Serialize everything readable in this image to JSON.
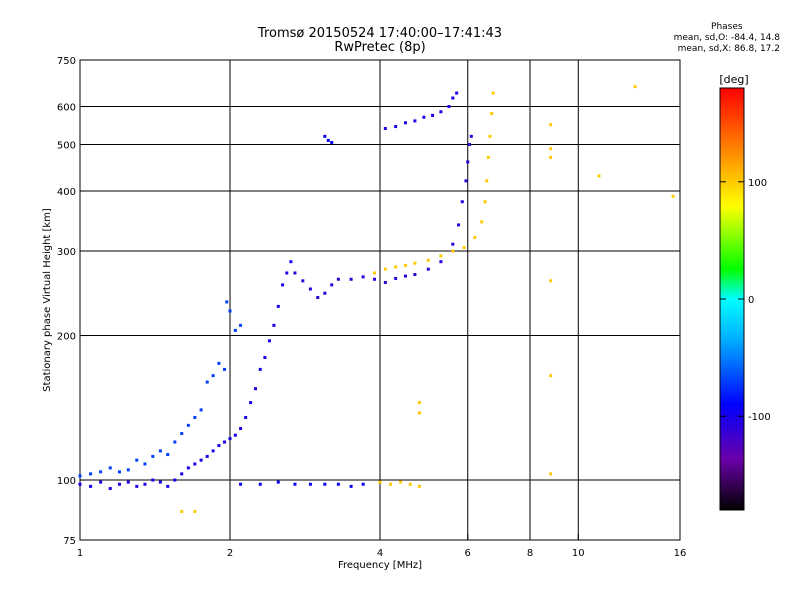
{
  "header": {
    "title": "Tromsø 20150524 17:40:00–17:41:43",
    "subtitle": "RwPretec (8p)"
  },
  "phases": {
    "label": "Phases",
    "line_o": "mean, sd,O: -84.4, 14.8",
    "line_x": "mean, sd,X:  86.8, 17.2"
  },
  "colorbar": {
    "unit": "[deg]",
    "ticks": [
      {
        "value": 100,
        "label": "100"
      },
      {
        "value": 0,
        "label": "0"
      },
      {
        "value": -100,
        "label": "-100"
      }
    ],
    "range": [
      -180,
      180
    ]
  },
  "chart_data": {
    "type": "scatter",
    "title": "Tromsø 20150524 17:40:00–17:41:43",
    "subtitle": "RwPretec (8p)",
    "xlabel": "Frequency [MHz]",
    "ylabel": "Stationary phase Virtual Height [km]",
    "xscale": "log",
    "yscale": "log",
    "xlim": [
      1,
      16
    ],
    "ylim": [
      75,
      750
    ],
    "xticks": [
      1,
      2,
      4,
      6,
      8,
      10,
      16
    ],
    "yticks": [
      75,
      100,
      200,
      300,
      400,
      500,
      600,
      750
    ],
    "xgrid": [
      2,
      4,
      6,
      8,
      10
    ],
    "ygrid": [
      100,
      200,
      300,
      400,
      500,
      600
    ],
    "series": [
      {
        "values": [
          [
            1.0,
            102
          ],
          [
            1.05,
            103
          ],
          [
            1.1,
            104
          ],
          [
            1.15,
            106
          ],
          [
            1.2,
            104
          ],
          [
            1.25,
            105
          ],
          [
            1.3,
            110
          ],
          [
            1.35,
            108
          ],
          [
            1.4,
            112
          ],
          [
            1.45,
            115
          ],
          [
            1.5,
            113
          ],
          [
            1.55,
            120
          ],
          [
            1.6,
            125
          ],
          [
            1.65,
            130
          ],
          [
            1.7,
            135
          ],
          [
            1.75,
            140
          ],
          [
            1.8,
            160
          ],
          [
            1.85,
            165
          ],
          [
            1.9,
            175
          ],
          [
            1.95,
            170
          ],
          [
            1.97,
            235
          ],
          [
            2.0,
            225
          ],
          [
            2.05,
            205
          ],
          [
            2.1,
            210
          ]
        ],
        "phase": -70
      },
      {
        "values": [
          [
            1.0,
            98
          ],
          [
            1.05,
            97
          ],
          [
            1.1,
            99
          ],
          [
            1.15,
            96
          ],
          [
            1.2,
            98
          ],
          [
            1.25,
            99
          ],
          [
            1.3,
            97
          ],
          [
            1.35,
            98
          ],
          [
            1.4,
            100
          ],
          [
            1.45,
            99
          ],
          [
            1.5,
            97
          ],
          [
            1.55,
            100
          ],
          [
            1.6,
            103
          ],
          [
            1.65,
            106
          ],
          [
            1.7,
            108
          ],
          [
            1.75,
            110
          ],
          [
            1.8,
            112
          ],
          [
            1.85,
            115
          ],
          [
            1.9,
            118
          ],
          [
            1.95,
            120
          ],
          [
            2.0,
            122
          ],
          [
            2.05,
            124
          ],
          [
            2.1,
            128
          ],
          [
            2.15,
            135
          ],
          [
            2.2,
            145
          ],
          [
            2.25,
            155
          ],
          [
            2.3,
            170
          ],
          [
            2.35,
            180
          ],
          [
            2.4,
            195
          ],
          [
            2.45,
            210
          ],
          [
            2.5,
            230
          ],
          [
            2.55,
            255
          ],
          [
            2.6,
            270
          ],
          [
            2.65,
            285
          ]
        ],
        "phase": -100
      },
      {
        "values": [
          [
            2.1,
            98
          ],
          [
            2.3,
            98
          ],
          [
            2.5,
            99
          ],
          [
            2.7,
            98
          ],
          [
            2.9,
            98
          ],
          [
            3.1,
            98
          ],
          [
            3.3,
            98
          ],
          [
            3.5,
            97
          ],
          [
            3.7,
            98
          ]
        ],
        "phase": -95
      },
      {
        "values": [
          [
            4.0,
            99
          ],
          [
            4.2,
            98
          ],
          [
            4.4,
            99
          ],
          [
            4.6,
            98
          ],
          [
            4.8,
            97
          ]
        ],
        "phase": 100
      },
      {
        "values": [
          [
            2.7,
            270
          ],
          [
            2.8,
            260
          ],
          [
            2.9,
            250
          ],
          [
            3.0,
            240
          ],
          [
            3.1,
            245
          ],
          [
            3.2,
            255
          ],
          [
            3.3,
            262
          ],
          [
            3.5,
            262
          ],
          [
            3.7,
            265
          ],
          [
            3.9,
            262
          ],
          [
            4.1,
            258
          ],
          [
            4.3,
            263
          ],
          [
            4.5,
            266
          ],
          [
            4.7,
            268
          ],
          [
            5.0,
            275
          ],
          [
            5.3,
            285
          ],
          [
            5.6,
            310
          ],
          [
            5.75,
            340
          ],
          [
            5.85,
            380
          ],
          [
            5.95,
            420
          ],
          [
            6.0,
            460
          ],
          [
            6.05,
            500
          ],
          [
            6.1,
            520
          ]
        ],
        "phase": -110
      },
      {
        "values": [
          [
            3.9,
            270
          ],
          [
            4.1,
            275
          ],
          [
            4.3,
            278
          ],
          [
            4.5,
            280
          ],
          [
            4.7,
            283
          ],
          [
            5.0,
            287
          ],
          [
            5.3,
            293
          ],
          [
            5.6,
            300
          ],
          [
            5.9,
            305
          ],
          [
            6.2,
            320
          ],
          [
            6.4,
            345
          ],
          [
            6.5,
            380
          ],
          [
            6.55,
            420
          ],
          [
            6.6,
            470
          ],
          [
            6.65,
            520
          ],
          [
            6.7,
            580
          ],
          [
            6.75,
            640
          ]
        ],
        "phase": 100
      },
      {
        "values": [
          [
            4.1,
            540
          ],
          [
            4.3,
            545
          ],
          [
            4.5,
            555
          ],
          [
            4.7,
            560
          ],
          [
            4.9,
            570
          ],
          [
            5.1,
            575
          ],
          [
            5.3,
            585
          ],
          [
            5.5,
            600
          ],
          [
            5.6,
            625
          ],
          [
            5.7,
            640
          ]
        ],
        "phase": -100
      },
      {
        "values": [
          [
            3.1,
            520
          ],
          [
            3.15,
            510
          ],
          [
            3.2,
            505
          ]
        ],
        "phase": -95
      },
      {
        "values": [
          [
            8.8,
            550
          ],
          [
            8.8,
            490
          ],
          [
            8.8,
            470
          ],
          [
            11.0,
            430
          ],
          [
            13.0,
            660
          ],
          [
            15.5,
            390
          ],
          [
            8.8,
            260
          ],
          [
            8.8,
            165
          ],
          [
            8.8,
            103
          ],
          [
            4.8,
            145
          ],
          [
            4.8,
            138
          ],
          [
            1.6,
            86
          ],
          [
            1.7,
            86
          ]
        ],
        "phase": 100
      }
    ]
  }
}
